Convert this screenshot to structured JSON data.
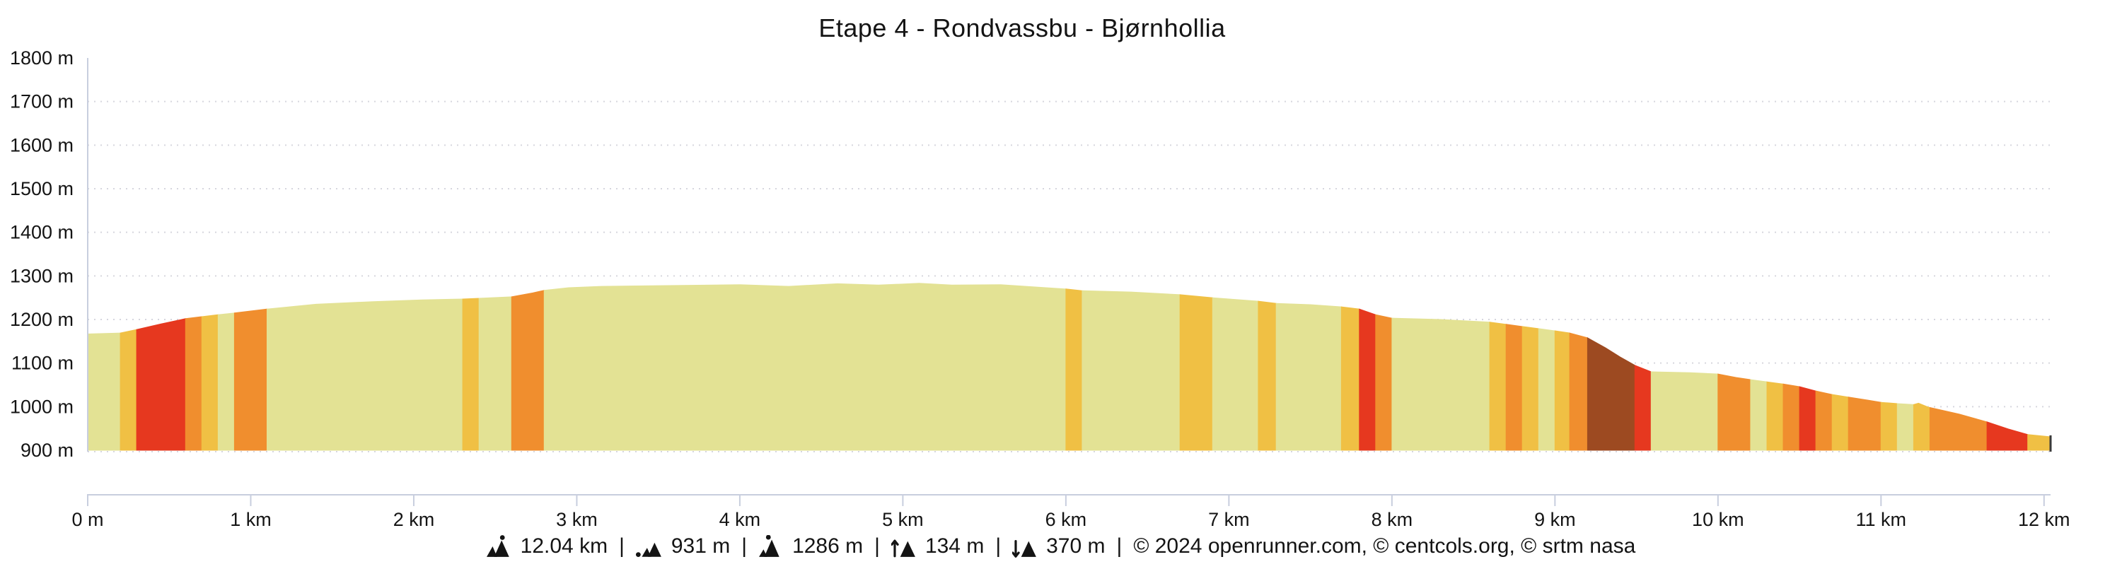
{
  "title": "Etape 4 - Rondvassbu - Bjørnhollia",
  "stats": {
    "separator": "|",
    "distance": {
      "icon": "mountain-distance-icon",
      "value": "12.04 km"
    },
    "min_elevation": {
      "icon": "mountain-min-altitude-icon",
      "value": "931 m"
    },
    "max_elevation": {
      "icon": "mountain-max-altitude-icon",
      "value": "1286 m"
    },
    "ascent": {
      "icon": "mountain-ascent-arrow-icon",
      "value": "134 m"
    },
    "descent": {
      "icon": "mountain-descent-arrow-icon",
      "value": "370 m"
    },
    "copyright": "© 2024 openrunner.com, © centcols.org, © srtm nasa"
  },
  "chart_data": {
    "type": "area",
    "title": "Etape 4 - Rondvassbu - Bjørnhollia",
    "x_unit": "km",
    "y_unit": "m",
    "x_range_km": [
      0,
      12.04
    ],
    "y_range_m": [
      900,
      1800
    ],
    "grid": "horizontal-dotted",
    "legend_position": "none",
    "colors": {
      "khaki": "#e3e294",
      "gold": "#f0c044",
      "orange": "#f08e2e",
      "red": "#e6381f",
      "brown": "#9d4a21",
      "axis": "#c8cede",
      "grid": "#d6d6de",
      "text": "#141414",
      "end_marker": "#3a3a3a"
    },
    "y_ticks": [
      {
        "m": 900,
        "label": "900 m"
      },
      {
        "m": 1000,
        "label": "1000 m"
      },
      {
        "m": 1100,
        "label": "1100 m"
      },
      {
        "m": 1200,
        "label": "1200 m"
      },
      {
        "m": 1300,
        "label": "1300 m"
      },
      {
        "m": 1400,
        "label": "1400 m"
      },
      {
        "m": 1500,
        "label": "1500 m"
      },
      {
        "m": 1600,
        "label": "1600 m"
      },
      {
        "m": 1700,
        "label": "1700 m"
      },
      {
        "m": 1800,
        "label": "1800 m"
      }
    ],
    "x_ticks": [
      {
        "km": 0,
        "label": "0 m"
      },
      {
        "km": 1,
        "label": "1 km"
      },
      {
        "km": 2,
        "label": "2 km"
      },
      {
        "km": 3,
        "label": "3 km"
      },
      {
        "km": 4,
        "label": "4 km"
      },
      {
        "km": 5,
        "label": "5 km"
      },
      {
        "km": 6,
        "label": "6 km"
      },
      {
        "km": 7,
        "label": "7 km"
      },
      {
        "km": 8,
        "label": "8 km"
      },
      {
        "km": 9,
        "label": "9 km"
      },
      {
        "km": 10,
        "label": "10 km"
      },
      {
        "km": 11,
        "label": "11 km"
      },
      {
        "km": 12,
        "label": "12 km"
      }
    ],
    "profile_points_km_m": [
      [
        0,
        1167
      ],
      [
        0.2,
        1169
      ],
      [
        0.3,
        1177
      ],
      [
        0.45,
        1190
      ],
      [
        0.6,
        1202
      ],
      [
        0.8,
        1211
      ],
      [
        0.9,
        1215
      ],
      [
        1.1,
        1224
      ],
      [
        1.4,
        1235
      ],
      [
        1.75,
        1241
      ],
      [
        2.05,
        1245
      ],
      [
        2.3,
        1247
      ],
      [
        2.6,
        1252
      ],
      [
        2.73,
        1261
      ],
      [
        2.8,
        1267
      ],
      [
        2.95,
        1273
      ],
      [
        3.15,
        1276
      ],
      [
        3.6,
        1278
      ],
      [
        4.0,
        1280
      ],
      [
        4.3,
        1276
      ],
      [
        4.6,
        1282
      ],
      [
        4.85,
        1279
      ],
      [
        5.1,
        1283
      ],
      [
        5.3,
        1279
      ],
      [
        5.6,
        1280
      ],
      [
        6.0,
        1270
      ],
      [
        6.1,
        1266
      ],
      [
        6.4,
        1263
      ],
      [
        6.7,
        1257
      ],
      [
        6.9,
        1250
      ],
      [
        7.18,
        1242
      ],
      [
        7.29,
        1237
      ],
      [
        7.5,
        1234
      ],
      [
        7.69,
        1229
      ],
      [
        7.8,
        1224
      ],
      [
        7.9,
        1211
      ],
      [
        8.0,
        1203
      ],
      [
        8.3,
        1200
      ],
      [
        8.6,
        1194
      ],
      [
        8.7,
        1189
      ],
      [
        8.8,
        1184
      ],
      [
        8.9,
        1179
      ],
      [
        9.0,
        1174
      ],
      [
        9.09,
        1169
      ],
      [
        9.2,
        1158
      ],
      [
        9.31,
        1135
      ],
      [
        9.4,
        1114
      ],
      [
        9.49,
        1095
      ],
      [
        9.59,
        1080
      ],
      [
        9.83,
        1078
      ],
      [
        10.0,
        1075
      ],
      [
        10.11,
        1067
      ],
      [
        10.2,
        1062
      ],
      [
        10.3,
        1057
      ],
      [
        10.4,
        1052
      ],
      [
        10.5,
        1046
      ],
      [
        10.6,
        1036
      ],
      [
        10.7,
        1028
      ],
      [
        10.8,
        1022
      ],
      [
        10.92,
        1015
      ],
      [
        11.0,
        1010
      ],
      [
        11.1,
        1007
      ],
      [
        11.2,
        1005
      ],
      [
        11.23,
        1008
      ],
      [
        11.29,
        999
      ],
      [
        11.48,
        983
      ],
      [
        11.65,
        965
      ],
      [
        11.78,
        949
      ],
      [
        11.9,
        936
      ],
      [
        12.04,
        931
      ]
    ],
    "gradient_segments": [
      [
        0.0,
        0.2,
        "khaki"
      ],
      [
        0.2,
        0.3,
        "gold"
      ],
      [
        0.3,
        0.6,
        "red"
      ],
      [
        0.6,
        0.7,
        "orange"
      ],
      [
        0.7,
        0.8,
        "gold"
      ],
      [
        0.8,
        0.9,
        "khaki"
      ],
      [
        0.9,
        1.1,
        "orange"
      ],
      [
        1.1,
        2.3,
        "khaki"
      ],
      [
        2.3,
        2.4,
        "gold"
      ],
      [
        2.4,
        2.6,
        "khaki"
      ],
      [
        2.6,
        2.8,
        "orange"
      ],
      [
        2.8,
        6.0,
        "khaki"
      ],
      [
        6.0,
        6.1,
        "gold"
      ],
      [
        6.1,
        6.7,
        "khaki"
      ],
      [
        6.7,
        6.9,
        "gold"
      ],
      [
        6.9,
        7.18,
        "khaki"
      ],
      [
        7.18,
        7.29,
        "gold"
      ],
      [
        7.29,
        7.69,
        "khaki"
      ],
      [
        7.69,
        7.8,
        "gold"
      ],
      [
        7.8,
        7.9,
        "red"
      ],
      [
        7.9,
        8.0,
        "orange"
      ],
      [
        8.0,
        8.6,
        "khaki"
      ],
      [
        8.6,
        8.7,
        "gold"
      ],
      [
        8.7,
        8.8,
        "orange"
      ],
      [
        8.8,
        8.9,
        "gold"
      ],
      [
        8.9,
        9.0,
        "khaki"
      ],
      [
        9.0,
        9.09,
        "gold"
      ],
      [
        9.09,
        9.2,
        "orange"
      ],
      [
        9.2,
        9.49,
        "brown"
      ],
      [
        9.49,
        9.59,
        "red"
      ],
      [
        9.59,
        10.0,
        "khaki"
      ],
      [
        10.0,
        10.2,
        "orange"
      ],
      [
        10.2,
        10.3,
        "khaki"
      ],
      [
        10.3,
        10.4,
        "gold"
      ],
      [
        10.4,
        10.5,
        "orange"
      ],
      [
        10.5,
        10.6,
        "red"
      ],
      [
        10.6,
        10.7,
        "orange"
      ],
      [
        10.7,
        10.8,
        "gold"
      ],
      [
        10.8,
        11.0,
        "orange"
      ],
      [
        11.0,
        11.1,
        "gold"
      ],
      [
        11.1,
        11.2,
        "khaki"
      ],
      [
        11.2,
        11.3,
        "gold"
      ],
      [
        11.3,
        11.65,
        "orange"
      ],
      [
        11.65,
        11.9,
        "red"
      ],
      [
        11.9,
        12.04,
        "gold"
      ]
    ]
  }
}
